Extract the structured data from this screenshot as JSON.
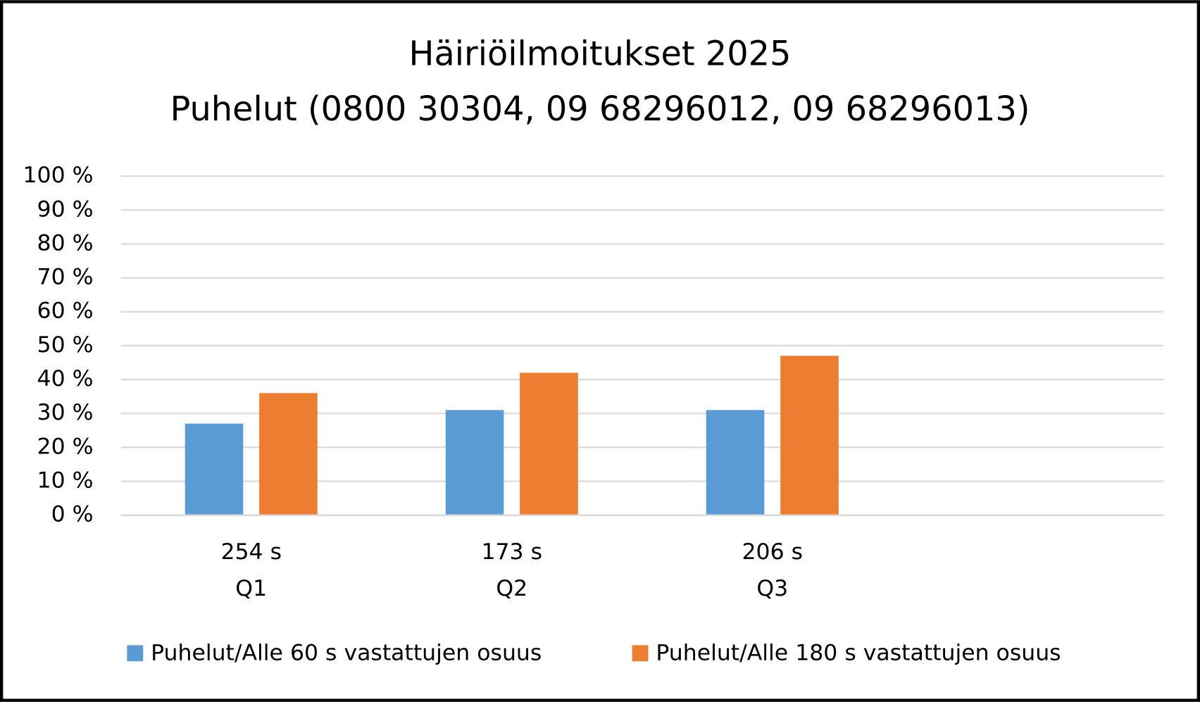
{
  "chart_data": {
    "type": "bar",
    "title": "Häiriöilmoitukset 2025",
    "subtitle": "Puhelut (0800 30304, 09 68296012, 09 68296013)",
    "categories": [
      "Q1",
      "Q2",
      "Q3",
      null
    ],
    "category_sublabels": [
      "254 s",
      "173 s",
      "206 s",
      null
    ],
    "series": [
      {
        "name": "Puhelut/Alle 60 s vastattujen osuus",
        "color": "#5b9bd5",
        "values": [
          27,
          31,
          31,
          null
        ]
      },
      {
        "name": "Puhelut/Alle 180 s vastattujen osuus",
        "color": "#ed7d31",
        "values": [
          36,
          42,
          47,
          null
        ]
      }
    ],
    "ylim": [
      0,
      100
    ],
    "yticks": [
      {
        "value": 0,
        "label": "0 %"
      },
      {
        "value": 10,
        "label": "10 %"
      },
      {
        "value": 20,
        "label": "20 %"
      },
      {
        "value": 30,
        "label": "30 %"
      },
      {
        "value": 40,
        "label": "40 %"
      },
      {
        "value": 50,
        "label": "50 %"
      },
      {
        "value": 60,
        "label": "60 %"
      },
      {
        "value": 70,
        "label": "70 %"
      },
      {
        "value": 80,
        "label": "80 %"
      },
      {
        "value": 90,
        "label": "90 %"
      },
      {
        "value": 100,
        "label": "100 %"
      }
    ],
    "grid": true,
    "legend": "bottom"
  }
}
